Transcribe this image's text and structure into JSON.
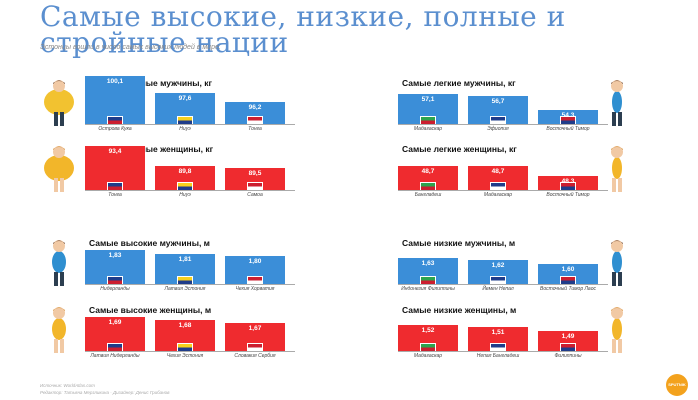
{
  "title": "Самые высокие, низкие, полные и стройные нации",
  "subtitle": "Эстонцы вошли в число самых высоких людей в мире.",
  "footer": {
    "sources": "Источник: WorldAtlas.com",
    "credits": "Редактор: Татьяна Мерзликина · Дизайнер: Денис Грибанов"
  },
  "logo_text": "SPUTNIK",
  "colors": {
    "blue": "#3b8ed8",
    "red": "#ef2b2f",
    "title": "#5b8fcf"
  },
  "chart_data": [
    {
      "id": "heavy-men",
      "type": "bar",
      "title": "Самые тяжелые мужчины, кг",
      "color": "blue",
      "ylim": [
        0,
        110
      ],
      "categories": [
        "Острова Кука",
        "Ниуэ",
        "Тонга"
      ],
      "values": [
        100.1,
        97.6,
        96.2
      ],
      "value_labels": [
        "100,1",
        "97,6",
        "96,2"
      ]
    },
    {
      "id": "light-men",
      "type": "bar",
      "title": "Самые легкие мужчины, кг",
      "color": "blue",
      "ylim": [
        0,
        110
      ],
      "categories": [
        "Мадагаскар",
        "Эфиопия",
        "Восточный Тимор"
      ],
      "values": [
        57.1,
        56.7,
        54.3
      ],
      "value_labels": [
        "57,1",
        "56,7",
        "54,3"
      ]
    },
    {
      "id": "heavy-women",
      "type": "bar",
      "title": "Самые тяжелые женщины, кг",
      "color": "red",
      "ylim": [
        0,
        110
      ],
      "categories": [
        "Тонга",
        "Ниуэ",
        "Самоа"
      ],
      "values": [
        93.4,
        89.8,
        89.5
      ],
      "value_labels": [
        "93,4",
        "89,8",
        "89,5"
      ]
    },
    {
      "id": "light-women",
      "type": "bar",
      "title": "Самые легкие женщины, кг",
      "color": "red",
      "ylim": [
        0,
        110
      ],
      "categories": [
        "Бангладеш",
        "Мадагаскар",
        "Восточный Тимор"
      ],
      "values": [
        48.7,
        48.7,
        48.3
      ],
      "value_labels": [
        "48,7",
        "48,7",
        "48,3"
      ]
    },
    {
      "id": "tall-men",
      "type": "bar",
      "title": "Самые высокие мужчины, м",
      "color": "blue",
      "ylim": [
        0,
        2.0
      ],
      "categories": [
        "Нидерланды",
        "Латвия Эстония",
        "Чехия Хорватия"
      ],
      "values": [
        1.83,
        1.81,
        1.8
      ],
      "value_labels": [
        "1,83",
        "1,81",
        "1,80"
      ]
    },
    {
      "id": "short-men",
      "type": "bar",
      "title": "Самые низкие мужчины, м",
      "color": "blue",
      "ylim": [
        0,
        2.0
      ],
      "categories": [
        "Индонезия Филиппины",
        "Йемен Непал",
        "Восточный Тимор Лаос"
      ],
      "values": [
        1.63,
        1.62,
        1.6
      ],
      "value_labels": [
        "1,63",
        "1,62",
        "1,60"
      ]
    },
    {
      "id": "tall-women",
      "type": "bar",
      "title": "Самые высокие женщины, м",
      "color": "red",
      "ylim": [
        0,
        2.0
      ],
      "categories": [
        "Латвия Нидерланды",
        "Чехия Эстония",
        "Словакия Сербия"
      ],
      "values": [
        1.69,
        1.68,
        1.67
      ],
      "value_labels": [
        "1,69",
        "1,68",
        "1,67"
      ]
    },
    {
      "id": "short-women",
      "type": "bar",
      "title": "Самые низкие женщины, м",
      "color": "red",
      "ylim": [
        0,
        2.0
      ],
      "categories": [
        "Мадагаскар",
        "Непал Бангладеш",
        "Филиппины"
      ],
      "values": [
        1.52,
        1.51,
        1.49
      ],
      "value_labels": [
        "1,52",
        "1,51",
        "1,49"
      ]
    }
  ]
}
